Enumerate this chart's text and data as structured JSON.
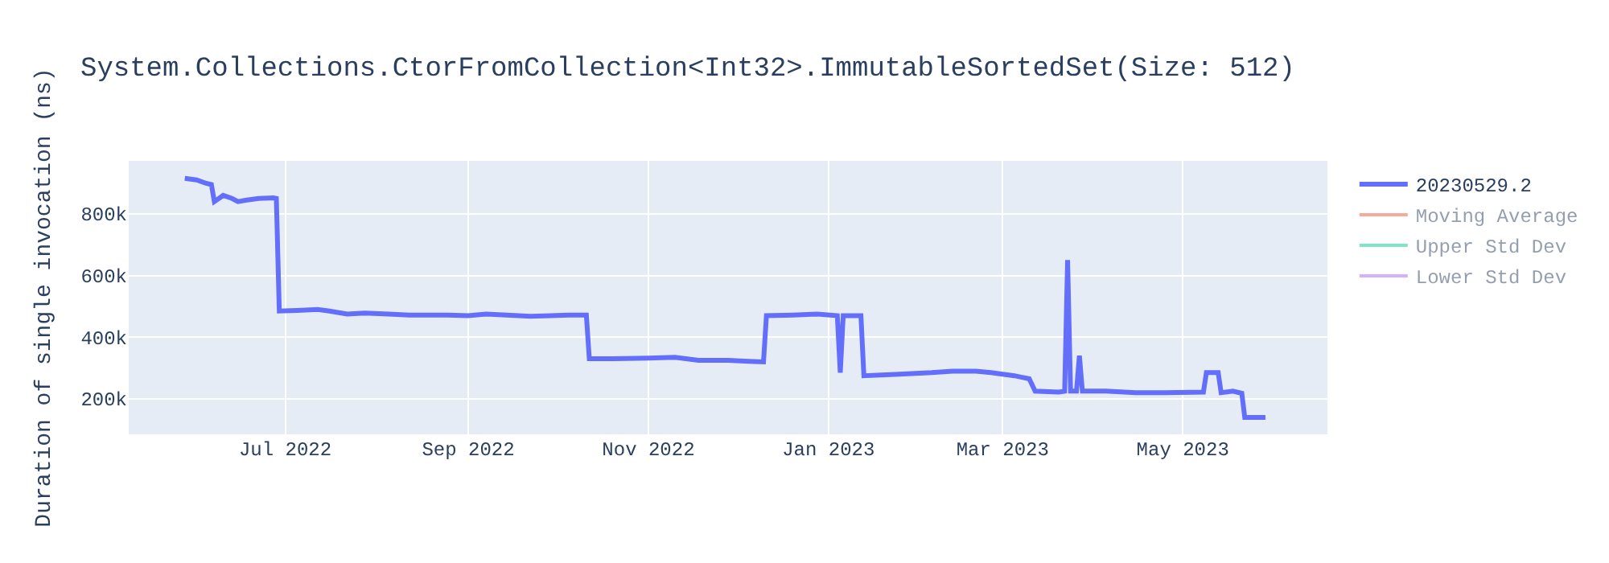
{
  "chart_data": {
    "type": "line",
    "title": "System.Collections.CtorFromCollection<Int32>.ImmutableSortedSet(Size: 512)",
    "ylabel": "Duration of single invocation (ns)",
    "xlim": [
      "2022-05-09",
      "2023-06-19"
    ],
    "xticks": [
      {
        "value": "2022-07-01",
        "label": "Jul 2022"
      },
      {
        "value": "2022-09-01",
        "label": "Sep 2022"
      },
      {
        "value": "2022-11-01",
        "label": "Nov 2022"
      },
      {
        "value": "2023-01-01",
        "label": "Jan 2023"
      },
      {
        "value": "2023-03-01",
        "label": "Mar 2023"
      },
      {
        "value": "2023-05-01",
        "label": "May 2023"
      }
    ],
    "ylim": [
      85000,
      972000
    ],
    "yticks": [
      {
        "value": 200000,
        "label": "200k"
      },
      {
        "value": 400000,
        "label": "400k"
      },
      {
        "value": 600000,
        "label": "600k"
      },
      {
        "value": 800000,
        "label": "800k"
      }
    ],
    "grid": true,
    "legend": "top right",
    "marker": "none",
    "line_style": "solid",
    "series": [
      {
        "name": "20230529.2",
        "color": "#636efa",
        "x": [
          "2022-05-28",
          "2022-06-01",
          "2022-06-04",
          "2022-06-06",
          "2022-06-07",
          "2022-06-10",
          "2022-06-13",
          "2022-06-15",
          "2022-06-18",
          "2022-06-22",
          "2022-06-27",
          "2022-06-28",
          "2022-06-29",
          "2022-07-05",
          "2022-07-12",
          "2022-07-16",
          "2022-07-22",
          "2022-07-28",
          "2022-08-05",
          "2022-08-12",
          "2022-08-25",
          "2022-09-01",
          "2022-09-07",
          "2022-09-14",
          "2022-09-22",
          "2022-09-29",
          "2022-10-05",
          "2022-10-11",
          "2022-10-12",
          "2022-10-20",
          "2022-11-01",
          "2022-11-10",
          "2022-11-18",
          "2022-11-28",
          "2022-12-05",
          "2022-12-10",
          "2022-12-11",
          "2022-12-20",
          "2022-12-28",
          "2023-01-04",
          "2023-01-05",
          "2023-01-06",
          "2023-01-11",
          "2023-01-12",
          "2023-01-13",
          "2023-01-25",
          "2023-02-05",
          "2023-02-12",
          "2023-02-20",
          "2023-02-25",
          "2023-03-05",
          "2023-03-10",
          "2023-03-12",
          "2023-03-20",
          "2023-03-22",
          "2023-03-23",
          "2023-03-24",
          "2023-03-26",
          "2023-03-27",
          "2023-03-28",
          "2023-04-05",
          "2023-04-15",
          "2023-04-25",
          "2023-05-08",
          "2023-05-09",
          "2023-05-13",
          "2023-05-14",
          "2023-05-18",
          "2023-05-21",
          "2023-05-22",
          "2023-05-29"
        ],
        "values": [
          915000,
          910000,
          900000,
          895000,
          840000,
          860000,
          850000,
          840000,
          845000,
          850000,
          852000,
          850000,
          485000,
          487000,
          490000,
          485000,
          475000,
          478000,
          475000,
          472000,
          472000,
          470000,
          475000,
          472000,
          468000,
          470000,
          472000,
          472000,
          330000,
          330000,
          332000,
          335000,
          325000,
          325000,
          322000,
          320000,
          470000,
          472000,
          475000,
          470000,
          285000,
          470000,
          470000,
          470000,
          275000,
          280000,
          285000,
          290000,
          290000,
          285000,
          275000,
          265000,
          225000,
          222000,
          225000,
          650000,
          225000,
          225000,
          340000,
          225000,
          225000,
          220000,
          220000,
          222000,
          285000,
          285000,
          220000,
          225000,
          218000,
          140000,
          140000
        ]
      },
      {
        "name": "Moving Average",
        "color": "#ef553b"
      },
      {
        "name": "Upper Std Dev",
        "color": "#00cc96"
      },
      {
        "name": "Lower Std Dev",
        "color": "#ab63fa"
      }
    ]
  }
}
